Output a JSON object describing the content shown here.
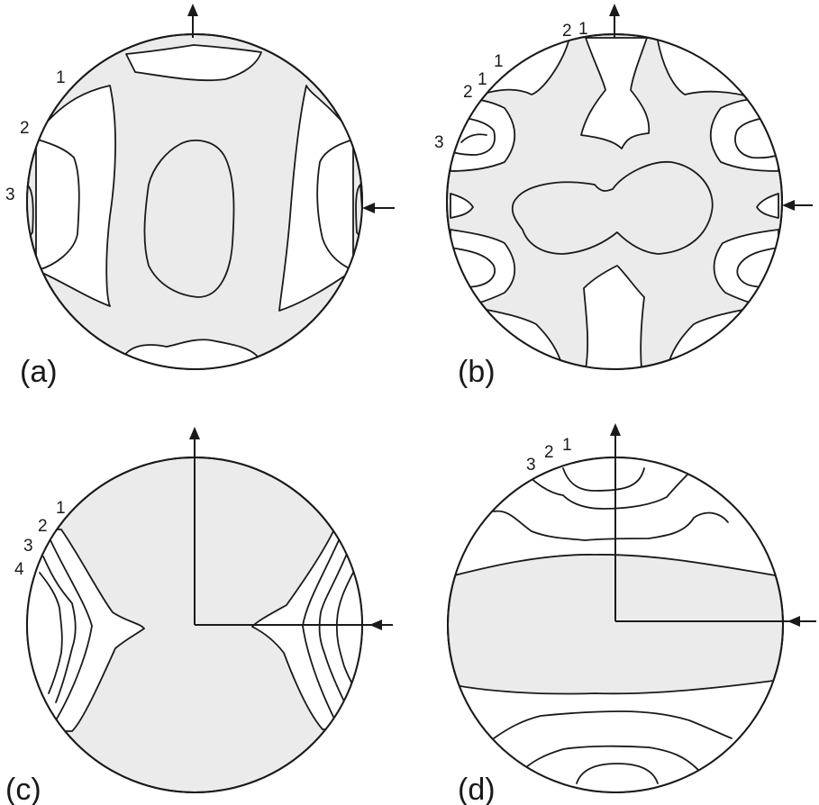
{
  "panels": [
    {
      "label": "(a)",
      "contour_labels": [
        "1",
        "2",
        "3"
      ]
    },
    {
      "label": "(b)",
      "contour_labels": [
        "2",
        "1",
        "1",
        "2",
        "1",
        "3"
      ]
    },
    {
      "label": "(c)",
      "contour_labels": [
        "1",
        "2",
        "3",
        "4"
      ]
    },
    {
      "label": "(d)",
      "contour_labels": [
        "3",
        "2",
        "1"
      ]
    }
  ],
  "colors": {
    "background": "#ffffff",
    "shading": "#ebebeb",
    "line": "#1a1a1a"
  }
}
